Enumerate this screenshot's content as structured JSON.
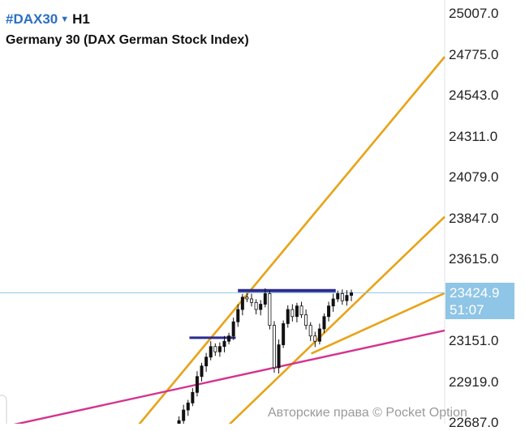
{
  "header": {
    "symbol": "#DAX30",
    "caret_icon": "triangle-down-icon",
    "timeframe": "H1",
    "instrument": "Germany 30 (DAX German Stock Index)"
  },
  "price_box": {
    "price": "23424.9",
    "timer": "51:07"
  },
  "watermark": "Авторские права © Pocket Option",
  "chart_data": {
    "type": "candlestick",
    "title": "Germany 30 (DAX German Stock Index)",
    "y_ticks": [
      "25007.0",
      "24775.0",
      "24543.0",
      "24311.0",
      "24079.0",
      "23847.0",
      "23615.0",
      "23151.0",
      "22919.0",
      "22687.0"
    ],
    "y_tick_values": [
      25007.0,
      24775.0,
      24543.0,
      24311.0,
      24079.0,
      23847.0,
      23615.0,
      23151.0,
      22919.0,
      22687.0
    ],
    "ylim": [
      22680,
      25050
    ],
    "x_range": [
      0,
      100
    ],
    "current_price": 23424.9,
    "close_series": [
      22640,
      22700,
      22760,
      22800,
      22860,
      22950,
      23010,
      23060,
      23120,
      23090,
      23120,
      23150,
      23180,
      23260,
      23330,
      23400,
      23390,
      23370,
      23330,
      23360,
      23420,
      23240,
      23000,
      23130,
      23250,
      23330,
      23290,
      23350,
      23300,
      23240,
      23180,
      23150,
      23220,
      23290,
      23350,
      23390,
      23420,
      23380,
      23410,
      23424.9
    ],
    "lines": [
      {
        "name": "channel-upper",
        "color": "#e8a317",
        "x": [
          30,
          100
        ],
        "y": [
          22640,
          24763
        ]
      },
      {
        "name": "channel-mid",
        "color": "#e8a317",
        "x": [
          50,
          100
        ],
        "y": [
          22640,
          23856
        ]
      },
      {
        "name": "channel-lower",
        "color": "#e8a317",
        "x": [
          70,
          100
        ],
        "y": [
          23080,
          23423
        ]
      },
      {
        "name": "trendline",
        "color": "#d4338f",
        "x": [
          0,
          100
        ],
        "y": [
          22660,
          23211
        ]
      },
      {
        "name": "resistance-upper",
        "color": "#2b2b8f",
        "x": [
          53.5,
          75.5
        ],
        "y": [
          23437,
          23437
        ]
      },
      {
        "name": "resistance-lower",
        "color": "#2b2b8f",
        "x": [
          42.6,
          53
        ],
        "y": [
          23170,
          23170
        ]
      },
      {
        "name": "current-price-line",
        "color": "#8fc5e6",
        "x": [
          0,
          100
        ],
        "y": [
          23424.9,
          23424.9
        ]
      }
    ]
  }
}
